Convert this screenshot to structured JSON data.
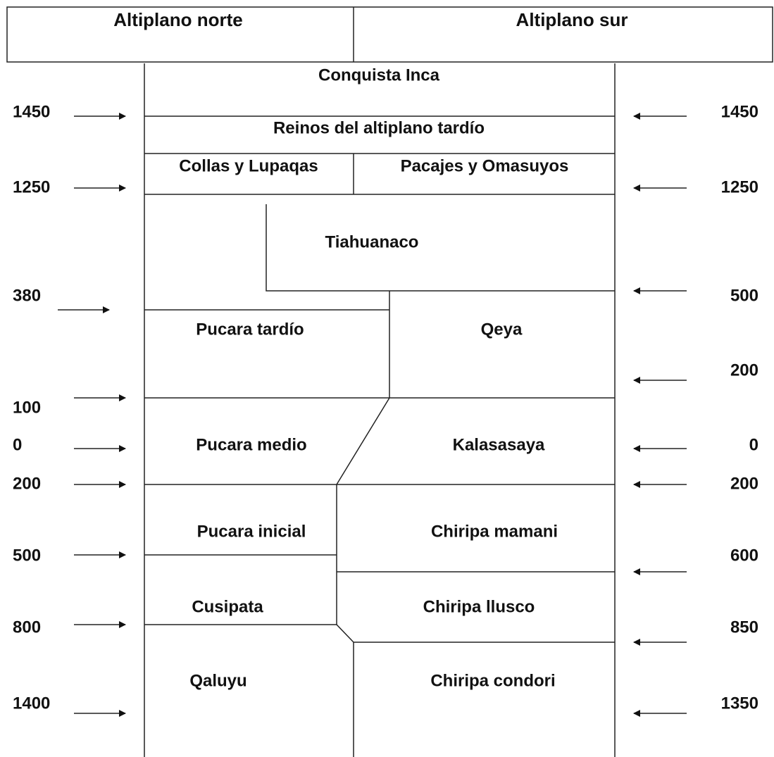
{
  "header": {
    "columns": [
      "Altiplano norte",
      "Altiplano sur"
    ]
  },
  "periods": [
    "Conquista Inca",
    "Reinos del altiplano tardío",
    "Collas y Lupaqas",
    "Pacajes y Omasuyos",
    "Tiahuanaco",
    "Pucara tardío",
    "Qeya",
    "Pucara medio",
    "Kalasasaya",
    "Pucara inicial",
    "Chiripa mamani",
    "Cusipata",
    "Chiripa llusco",
    "Qaluyu",
    "Chiripa condori"
  ],
  "left_dates": [
    "1450",
    "1250",
    "380",
    "100",
    "0",
    "200",
    "500",
    "800",
    "1400"
  ],
  "right_dates": [
    "1450",
    "1250",
    "500",
    "200",
    "0",
    "200",
    "600",
    "850",
    "1350"
  ]
}
